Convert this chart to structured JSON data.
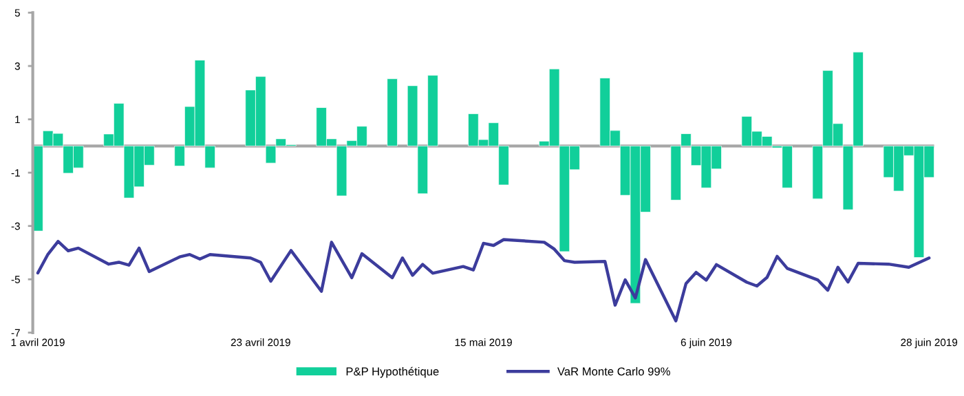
{
  "chart_data": {
    "type": "bar",
    "x": [
      "2019-04-01",
      "2019-04-02",
      "2019-04-03",
      "2019-04-04",
      "2019-04-05",
      "2019-04-08",
      "2019-04-09",
      "2019-04-10",
      "2019-04-11",
      "2019-04-12",
      "2019-04-15",
      "2019-04-16",
      "2019-04-17",
      "2019-04-18",
      "2019-04-22",
      "2019-04-23",
      "2019-04-24",
      "2019-04-25",
      "2019-04-26",
      "2019-04-29",
      "2019-04-30",
      "2019-05-01",
      "2019-05-02",
      "2019-05-03",
      "2019-05-06",
      "2019-05-08",
      "2019-05-09",
      "2019-05-10",
      "2019-05-14",
      "2019-05-15",
      "2019-05-16",
      "2019-05-17",
      "2019-05-21",
      "2019-05-22",
      "2019-05-23",
      "2019-05-24",
      "2019-05-27",
      "2019-05-28",
      "2019-05-29",
      "2019-05-30",
      "2019-05-31",
      "2019-06-03",
      "2019-06-04",
      "2019-06-05",
      "2019-06-06",
      "2019-06-07",
      "2019-06-10",
      "2019-06-11",
      "2019-06-12",
      "2019-06-13",
      "2019-06-14",
      "2019-06-17",
      "2019-06-18",
      "2019-06-19",
      "2019-06-20",
      "2019-06-21",
      "2019-06-24",
      "2019-06-25",
      "2019-06-26",
      "2019-06-27",
      "2019-06-28"
    ],
    "series": [
      {
        "name": "P&P Hypothétique",
        "color": "#11cf9a",
        "values": [
          -3.19,
          0.57,
          0.47,
          -1.02,
          -0.82,
          0.45,
          1.6,
          -1.95,
          -1.53,
          -0.72,
          -0.75,
          1.48,
          3.22,
          -0.82,
          2.1,
          2.61,
          -0.64,
          0.27,
          0.05,
          1.44,
          0.27,
          -1.87,
          0.2,
          0.74,
          2.52,
          2.26,
          -1.79,
          2.65,
          1.21,
          0.24,
          0.87,
          -1.46,
          0.18,
          2.89,
          -3.96,
          -0.89,
          2.55,
          0.58,
          -1.85,
          -5.9,
          -2.48,
          -2.03,
          0.46,
          -0.73,
          -1.57,
          -0.86,
          1.11,
          0.55,
          0.36,
          -0.07,
          -1.57,
          -1.98,
          2.83,
          0.84,
          -2.39,
          3.52,
          -1.18,
          -1.69,
          -0.36,
          -4.18,
          -1.18
        ]
      },
      {
        "name": "VaR Monte Carlo 99%",
        "type": "line",
        "color": "#3c3c9c",
        "x": [
          "2019-04-01",
          "2019-04-02",
          "2019-04-03",
          "2019-04-04",
          "2019-04-05",
          "2019-04-08",
          "2019-04-09",
          "2019-04-10",
          "2019-04-11",
          "2019-04-12",
          "2019-04-15",
          "2019-04-16",
          "2019-04-17",
          "2019-04-18",
          "2019-04-22",
          "2019-04-23",
          "2019-04-24",
          "2019-04-26",
          "2019-04-29",
          "2019-04-30",
          "2019-05-02",
          "2019-05-03",
          "2019-05-06",
          "2019-05-07",
          "2019-05-08",
          "2019-05-09",
          "2019-05-10",
          "2019-05-13",
          "2019-05-14",
          "2019-05-15",
          "2019-05-16",
          "2019-05-17",
          "2019-05-21",
          "2019-05-22",
          "2019-05-23",
          "2019-05-24",
          "2019-05-27",
          "2019-05-28",
          "2019-05-29",
          "2019-05-30",
          "2019-05-31",
          "2019-06-03",
          "2019-06-04",
          "2019-06-05",
          "2019-06-06",
          "2019-06-07",
          "2019-06-10",
          "2019-06-11",
          "2019-06-12",
          "2019-06-13",
          "2019-06-14",
          "2019-06-17",
          "2019-06-18",
          "2019-06-19",
          "2019-06-20",
          "2019-06-21",
          "2019-06-24",
          "2019-06-26",
          "2019-06-28"
        ],
        "values": [
          -4.76,
          -4.06,
          -3.58,
          -3.93,
          -3.83,
          -4.43,
          -4.36,
          -4.47,
          -3.83,
          -4.71,
          -4.16,
          -4.07,
          -4.24,
          -4.07,
          -4.2,
          -4.36,
          -5.07,
          -3.92,
          -5.45,
          -3.61,
          -4.94,
          -4.04,
          -4.94,
          -4.2,
          -4.85,
          -4.44,
          -4.77,
          -4.52,
          -4.65,
          -3.65,
          -3.73,
          -3.51,
          -3.61,
          -3.87,
          -4.3,
          -4.36,
          -4.33,
          -5.97,
          -5.02,
          -5.7,
          -4.26,
          -6.56,
          -5.16,
          -4.74,
          -5.03,
          -4.45,
          -5.11,
          -5.25,
          -4.93,
          -4.14,
          -4.59,
          -5.02,
          -5.41,
          -4.55,
          -5.1,
          -4.4,
          -4.43,
          -4.55,
          -4.2
        ]
      }
    ],
    "xlim": [
      "2019-03-31T12:00",
      "2019-06-28T12:00"
    ],
    "xticks": [
      {
        "value": "2019-04-01",
        "label": "1 avril 2019"
      },
      {
        "value": "2019-04-23",
        "label": "23 avril 2019"
      },
      {
        "value": "2019-05-15",
        "label": "15 mai 2019"
      },
      {
        "value": "2019-06-06",
        "label": "6 juin 2019"
      },
      {
        "value": "2019-06-28",
        "label": "28 juin 2019"
      }
    ],
    "ylim": [
      -7,
      5
    ],
    "yticks": [
      -7,
      -5,
      -3,
      -1,
      1,
      3,
      5
    ],
    "ref_lines": [
      {
        "axis": "y",
        "value": 0,
        "color": "#a6a6a6"
      }
    ],
    "grid": false,
    "legend": "bottom"
  }
}
